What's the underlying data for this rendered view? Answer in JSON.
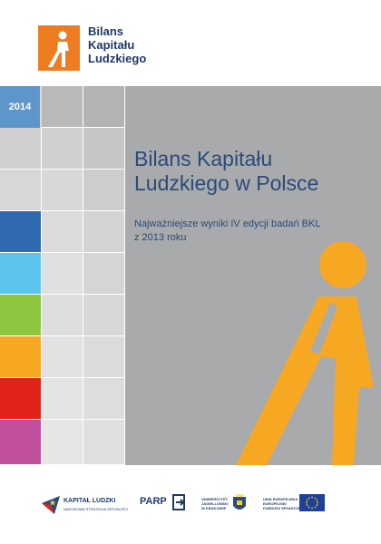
{
  "brand": {
    "line1": "Bilans",
    "line2": "Kapitału",
    "line3": "Ludzkiego"
  },
  "year": "2014",
  "title": {
    "line1": "Bilans Kapitału",
    "line2": "Ludzkiego w Polsce"
  },
  "subtitle": {
    "line1": "Najważniejsze wyniki IV edycji badań BKL",
    "line2": "z 2013 roku"
  },
  "colors": {
    "orange": "#f7a823",
    "logo_orange": "#ee7d22",
    "navy": "#2a4b7c",
    "stripes": [
      "#2f6ab0",
      "#5bc5ef",
      "#8cc63f",
      "#f7a823",
      "#e2231a",
      "#c1509c"
    ]
  },
  "footer": {
    "kl": {
      "title": "KAPITAŁ LUDZKI",
      "sub": "NARODOWA STRATEGIA SPÓJNOŚCI"
    },
    "parp": "PARP",
    "uj": {
      "l1": "UNIWERSYTET",
      "l2": "JAGIELLOŃSKI",
      "l3": "W KRAKOWIE"
    },
    "eu": {
      "l1": "UNIA EUROPEJSKA",
      "l2": "EUROPEJSKI",
      "l3": "FUNDUSZ SPOŁECZNY"
    }
  }
}
